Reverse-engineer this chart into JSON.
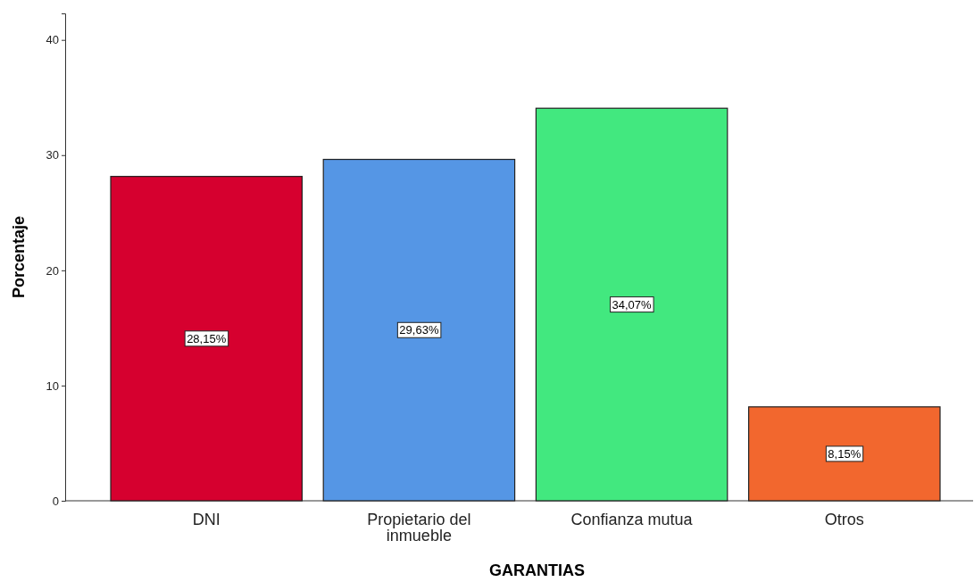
{
  "chart_data": {
    "type": "bar",
    "xlabel": "GARANTIAS",
    "ylabel": "Porcentaje",
    "categories": [
      "DNI",
      "Propietario del inmueble",
      "Confianza mutua",
      "Otros"
    ],
    "values": [
      28.15,
      29.63,
      34.07,
      8.15
    ],
    "colors": [
      "#d6002f",
      "#5596e5",
      "#42e87f",
      "#f2672e"
    ],
    "value_labels": [
      "28,15%",
      "29,63%",
      "34,07%",
      "8,15%"
    ],
    "ylim": [
      0,
      42.3
    ],
    "yticks": [
      0,
      10,
      20,
      30,
      40
    ],
    "grid": false
  }
}
